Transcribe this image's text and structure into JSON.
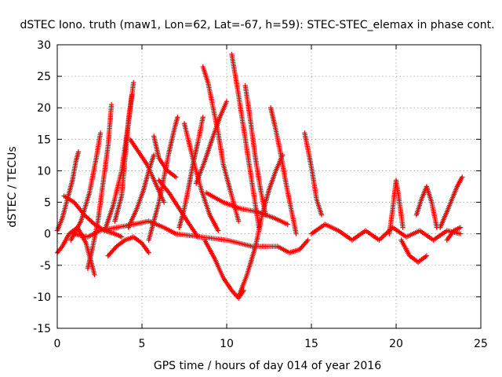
{
  "chart_data": {
    "type": "scatter",
    "title": "dSTEC Iono. truth (maw1, Lon=62, Lat=-67, h=59): STEC-STEC_elemax in phase cont.",
    "xlabel": "GPS time / hours of day 014 of year 2016",
    "ylabel": "dSTEC  / TECUs",
    "xlim": [
      0,
      25
    ],
    "ylim": [
      -15,
      30
    ],
    "x_ticks": [
      0,
      5,
      10,
      15,
      20,
      25
    ],
    "y_ticks": [
      -15,
      -10,
      -5,
      0,
      5,
      10,
      15,
      20,
      25,
      30
    ],
    "x_tick_labels": [
      "0",
      "5",
      "10",
      "15",
      "20",
      "25"
    ],
    "y_tick_labels": [
      "-15",
      "-10",
      "-5",
      "0",
      "5",
      "10",
      "15",
      "20",
      "25",
      "30"
    ],
    "grid": true,
    "marker": "+",
    "color": "#ff0000",
    "series": [
      {
        "x": [
          0.0,
          0.3,
          0.6,
          0.9,
          1.1,
          1.25
        ],
        "y": [
          0.5,
          2.5,
          5.5,
          8.5,
          11.5,
          13.0
        ]
      },
      {
        "x": [
          0.0,
          0.3,
          0.7,
          1.2,
          1.7,
          2.0,
          2.2
        ],
        "y": [
          -3.0,
          -2.0,
          0.0,
          1.0,
          -1.5,
          -4.5,
          -6.5
        ]
      },
      {
        "x": [
          1.8,
          2.1,
          2.4,
          2.7,
          3.0,
          3.2
        ],
        "y": [
          -5.5,
          -2.0,
          2.0,
          8.0,
          14.0,
          20.5
        ]
      },
      {
        "x": [
          0.8,
          1.4,
          1.9,
          2.3,
          2.55
        ],
        "y": [
          -1.0,
          2.0,
          6.5,
          12.0,
          16.0
        ]
      },
      {
        "x": [
          0.4,
          1.0,
          1.6,
          2.2,
          2.8,
          3.4,
          3.8
        ],
        "y": [
          6.0,
          5.0,
          3.0,
          1.5,
          0.5,
          0.0,
          -0.5
        ]
      },
      {
        "x": [
          2.8,
          3.3,
          3.8,
          4.2,
          4.5
        ],
        "y": [
          0.5,
          4.5,
          10.0,
          17.5,
          24.0
        ]
      },
      {
        "x": [
          3.4,
          3.8,
          4.0,
          4.2,
          4.4
        ],
        "y": [
          2.0,
          6.0,
          12.0,
          18.0,
          22.0
        ]
      },
      {
        "x": [
          3.0,
          3.5,
          4.0,
          4.5,
          5.0,
          5.4
        ],
        "y": [
          -3.5,
          -2.0,
          -1.0,
          -0.5,
          -1.5,
          -3.0
        ]
      },
      {
        "x": [
          1.0,
          1.8,
          2.5,
          3.5,
          4.5,
          5.4,
          6.3,
          7.0
        ],
        "y": [
          0.0,
          -0.5,
          0.5,
          1.0,
          1.5,
          2.0,
          1.0,
          0.0
        ]
      },
      {
        "x": [
          4.2,
          4.7,
          5.1,
          5.4,
          5.7
        ],
        "y": [
          1.0,
          4.0,
          7.0,
          10.0,
          12.5
        ]
      },
      {
        "x": [
          4.3,
          4.8,
          5.3,
          5.8,
          6.3
        ],
        "y": [
          15.0,
          13.0,
          11.0,
          8.0,
          5.0
        ]
      },
      {
        "x": [
          5.4,
          5.7,
          6.0,
          6.3,
          6.6,
          6.9,
          7.1
        ],
        "y": [
          -1.0,
          2.0,
          5.0,
          9.0,
          13.0,
          16.5,
          18.5
        ]
      },
      {
        "x": [
          5.7,
          6.0,
          6.5,
          7.0
        ],
        "y": [
          15.5,
          12.0,
          10.0,
          9.0
        ]
      },
      {
        "x": [
          6.0,
          6.6,
          7.2,
          7.8,
          8.3
        ],
        "y": [
          8.5,
          6.5,
          4.0,
          1.5,
          -0.5
        ]
      },
      {
        "x": [
          7.2,
          7.5,
          7.8,
          8.0,
          8.3,
          8.6
        ],
        "y": [
          1.0,
          4.0,
          8.0,
          11.0,
          14.5,
          18.5
        ]
      },
      {
        "x": [
          7.5,
          8.0,
          8.5,
          9.0,
          9.5
        ],
        "y": [
          17.5,
          12.0,
          7.0,
          3.0,
          0.5
        ]
      },
      {
        "x": [
          8.6,
          8.9,
          9.2,
          9.5,
          9.8,
          10.2,
          10.7
        ],
        "y": [
          26.5,
          24.0,
          20.0,
          16.0,
          11.0,
          7.0,
          2.0
        ]
      },
      {
        "x": [
          8.2,
          8.7,
          9.2,
          9.6,
          10.0
        ],
        "y": [
          8.0,
          11.5,
          15.5,
          18.5,
          21.0
        ]
      },
      {
        "x": [
          8.7,
          9.3,
          9.8,
          10.3,
          10.7,
          11.0
        ],
        "y": [
          -1.0,
          -4.0,
          -7.0,
          -9.0,
          -10.2,
          -9.0
        ]
      },
      {
        "x": [
          10.7,
          11.2,
          11.7,
          12.1,
          12.5,
          12.9,
          13.3
        ],
        "y": [
          -10.0,
          -6.5,
          -2.0,
          3.0,
          7.0,
          10.0,
          12.5
        ]
      },
      {
        "x": [
          10.3,
          10.7,
          11.1,
          11.5,
          11.9
        ],
        "y": [
          28.5,
          22.0,
          15.0,
          8.0,
          1.0
        ]
      },
      {
        "x": [
          11.1,
          11.4,
          11.7,
          12.0,
          12.3
        ],
        "y": [
          23.5,
          18.0,
          12.0,
          7.0,
          3.0
        ]
      },
      {
        "x": [
          12.6,
          12.9,
          13.2,
          13.5,
          13.8,
          14.1
        ],
        "y": [
          20.0,
          16.5,
          12.5,
          8.0,
          4.0,
          0.0
        ]
      },
      {
        "x": [
          14.6,
          14.9,
          15.1,
          15.3,
          15.6
        ],
        "y": [
          16.0,
          12.0,
          9.0,
          5.5,
          3.0
        ]
      },
      {
        "x": [
          7.0,
          8.5,
          10.0,
          11.5,
          13.0,
          13.7,
          14.3,
          14.8
        ],
        "y": [
          0.0,
          -0.5,
          -1.0,
          -2.0,
          -2.0,
          -3.0,
          -2.5,
          -1.0
        ]
      },
      {
        "x": [
          8.8,
          9.8,
          10.8,
          11.8,
          12.8,
          13.6
        ],
        "y": [
          6.5,
          5.0,
          4.0,
          3.5,
          2.5,
          1.5
        ]
      },
      {
        "x": [
          15.0,
          15.8,
          16.6,
          17.4,
          18.2,
          19.0,
          19.8,
          20.6,
          21.4,
          22.2,
          23.0,
          23.8
        ],
        "y": [
          0.0,
          1.5,
          0.5,
          -1.0,
          0.5,
          -1.0,
          1.0,
          -0.5,
          0.5,
          -1.0,
          0.5,
          0.0
        ]
      },
      {
        "x": [
          19.6,
          19.8,
          20.0,
          20.2,
          20.4
        ],
        "y": [
          0.0,
          4.0,
          8.5,
          5.0,
          1.0
        ]
      },
      {
        "x": [
          20.3,
          20.8,
          21.3,
          21.8
        ],
        "y": [
          -1.0,
          -3.5,
          -4.5,
          -3.5
        ]
      },
      {
        "x": [
          21.2,
          21.5,
          21.8,
          22.1,
          22.4
        ],
        "y": [
          3.0,
          5.5,
          7.5,
          5.0,
          1.0
        ]
      },
      {
        "x": [
          22.6,
          23.0,
          23.3,
          23.6,
          23.9
        ],
        "y": [
          1.0,
          3.5,
          5.5,
          7.5,
          9.0
        ]
      },
      {
        "x": [
          23.0,
          23.4,
          23.8
        ],
        "y": [
          -1.0,
          0.5,
          1.0
        ]
      }
    ]
  }
}
